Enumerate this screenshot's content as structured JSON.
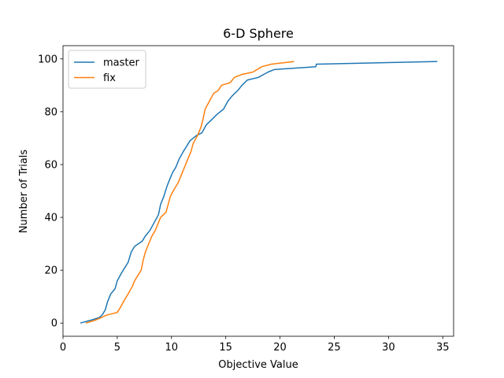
{
  "chart_data": {
    "type": "line",
    "title": "6-D Sphere",
    "xlabel": "Objective Value",
    "ylabel": "Number of Trials",
    "xlim": [
      0,
      36
    ],
    "ylim": [
      -5,
      105
    ],
    "xticks": [
      0,
      5,
      10,
      15,
      20,
      25,
      30,
      35
    ],
    "yticks": [
      0,
      20,
      40,
      60,
      80,
      100
    ],
    "grid": false,
    "legend": "upper left",
    "series": [
      {
        "name": "master",
        "color": "#1f77b4",
        "points": [
          [
            1.6,
            0
          ],
          [
            2.5,
            1
          ],
          [
            3.3,
            2
          ],
          [
            3.6,
            3
          ],
          [
            3.9,
            5
          ],
          [
            4.1,
            8
          ],
          [
            4.4,
            11
          ],
          [
            4.8,
            13
          ],
          [
            5.0,
            16
          ],
          [
            5.4,
            19
          ],
          [
            5.7,
            21
          ],
          [
            6.0,
            23
          ],
          [
            6.3,
            27
          ],
          [
            6.6,
            29
          ],
          [
            7.3,
            31
          ],
          [
            7.6,
            33
          ],
          [
            8.0,
            35
          ],
          [
            8.4,
            38
          ],
          [
            8.8,
            41
          ],
          [
            9.0,
            45
          ],
          [
            9.3,
            48
          ],
          [
            9.6,
            52
          ],
          [
            9.9,
            55
          ],
          [
            10.1,
            57
          ],
          [
            10.4,
            59
          ],
          [
            10.7,
            62
          ],
          [
            11.1,
            65
          ],
          [
            11.4,
            67
          ],
          [
            11.7,
            69
          ],
          [
            12.3,
            71
          ],
          [
            12.8,
            72
          ],
          [
            13.2,
            75
          ],
          [
            13.7,
            77
          ],
          [
            14.2,
            79
          ],
          [
            14.8,
            81
          ],
          [
            15.2,
            84
          ],
          [
            15.6,
            86
          ],
          [
            16.1,
            88
          ],
          [
            16.5,
            90
          ],
          [
            17.0,
            92
          ],
          [
            18.0,
            93
          ],
          [
            18.9,
            95
          ],
          [
            19.5,
            96
          ],
          [
            23.3,
            97
          ],
          [
            23.35,
            98
          ],
          [
            34.5,
            99
          ]
        ]
      },
      {
        "name": "fix",
        "color": "#ff7f0e",
        "points": [
          [
            2.1,
            0
          ],
          [
            2.9,
            1
          ],
          [
            3.5,
            2
          ],
          [
            4.0,
            3
          ],
          [
            5.0,
            4
          ],
          [
            5.3,
            6
          ],
          [
            5.7,
            9
          ],
          [
            6.0,
            11
          ],
          [
            6.4,
            14
          ],
          [
            6.6,
            16
          ],
          [
            6.9,
            18
          ],
          [
            7.2,
            20
          ],
          [
            7.4,
            24
          ],
          [
            7.6,
            27
          ],
          [
            7.9,
            30
          ],
          [
            8.2,
            33
          ],
          [
            8.5,
            35
          ],
          [
            8.8,
            38
          ],
          [
            9.0,
            40
          ],
          [
            9.5,
            42
          ],
          [
            9.7,
            45
          ],
          [
            9.9,
            48
          ],
          [
            10.3,
            51
          ],
          [
            10.6,
            53
          ],
          [
            10.9,
            56
          ],
          [
            11.2,
            59
          ],
          [
            11.5,
            62
          ],
          [
            11.8,
            65
          ],
          [
            12.0,
            68
          ],
          [
            12.4,
            71
          ],
          [
            12.7,
            74
          ],
          [
            12.9,
            77
          ],
          [
            13.1,
            81
          ],
          [
            13.5,
            84
          ],
          [
            13.9,
            87
          ],
          [
            14.3,
            88
          ],
          [
            14.6,
            90
          ],
          [
            15.4,
            91
          ],
          [
            15.8,
            93
          ],
          [
            16.4,
            94
          ],
          [
            17.5,
            95
          ],
          [
            17.9,
            96
          ],
          [
            18.3,
            97
          ],
          [
            19.2,
            98
          ],
          [
            21.3,
            99
          ]
        ]
      }
    ]
  }
}
